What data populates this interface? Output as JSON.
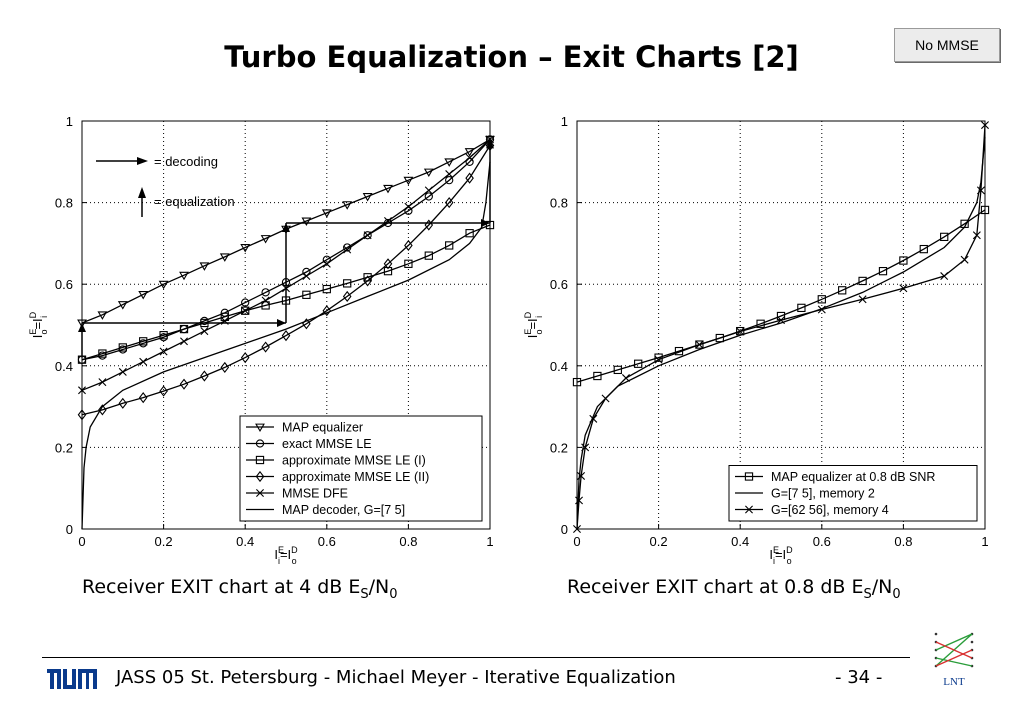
{
  "slide": {
    "title": "Turbo Equalization – Exit Charts [2]",
    "button_label": "No MMSE",
    "caption_left": {
      "prefix": "Receiver EXIT chart at 4 dB E",
      "sub1": "S",
      "mid": "/N",
      "sub2": "0"
    },
    "caption_right": {
      "prefix": "Receiver EXIT chart at 0.8 dB E",
      "sub1": "S",
      "mid": "/N",
      "sub2": "0"
    },
    "footer": "JASS 05 St. Petersburg  -  Michael Meyer  -  Iterative Equalization",
    "page": "- 34 -",
    "lnt_logo_text": "LNT"
  },
  "chart_data": [
    {
      "type": "line",
      "title": "",
      "xlabel": "I_i^E=I_o^D",
      "ylabel": "I_o^E=I_i^D",
      "xlim": [
        0,
        1
      ],
      "ylim": [
        0,
        1
      ],
      "xticks": [
        "0",
        "0.2",
        "0.4",
        "0.6",
        "0.8",
        "1"
      ],
      "yticks": [
        "0",
        "0.2",
        "0.4",
        "0.6",
        "0.8",
        "1"
      ],
      "grid": true,
      "legend_position": "bottom-right",
      "annotations": [
        "= decoding",
        "= equalization"
      ],
      "series": [
        {
          "name": "MAP equalizer",
          "marker": "triangle-down",
          "x": [
            0,
            0.05,
            0.1,
            0.15,
            0.2,
            0.25,
            0.3,
            0.35,
            0.4,
            0.45,
            0.5,
            0.55,
            0.6,
            0.65,
            0.7,
            0.75,
            0.8,
            0.85,
            0.9,
            0.95,
            1.0
          ],
          "y": [
            0.505,
            0.525,
            0.55,
            0.575,
            0.6,
            0.622,
            0.645,
            0.667,
            0.69,
            0.712,
            0.735,
            0.755,
            0.775,
            0.795,
            0.815,
            0.835,
            0.855,
            0.875,
            0.9,
            0.925,
            0.955
          ]
        },
        {
          "name": "exact MMSE LE",
          "marker": "circle",
          "x": [
            0,
            0.05,
            0.1,
            0.15,
            0.2,
            0.25,
            0.3,
            0.35,
            0.4,
            0.45,
            0.5,
            0.55,
            0.6,
            0.65,
            0.7,
            0.75,
            0.8,
            0.85,
            0.9,
            0.95,
            1.0
          ],
          "y": [
            0.415,
            0.425,
            0.44,
            0.455,
            0.47,
            0.49,
            0.51,
            0.53,
            0.555,
            0.58,
            0.605,
            0.63,
            0.66,
            0.69,
            0.72,
            0.75,
            0.78,
            0.815,
            0.855,
            0.9,
            0.955
          ]
        },
        {
          "name": "approximate MMSE LE (I)",
          "marker": "square",
          "x": [
            0,
            0.05,
            0.1,
            0.15,
            0.2,
            0.25,
            0.3,
            0.35,
            0.4,
            0.45,
            0.5,
            0.55,
            0.6,
            0.65,
            0.7,
            0.75,
            0.8,
            0.85,
            0.9,
            0.95,
            1.0
          ],
          "y": [
            0.415,
            0.43,
            0.445,
            0.46,
            0.475,
            0.49,
            0.505,
            0.52,
            0.535,
            0.548,
            0.56,
            0.574,
            0.588,
            0.602,
            0.617,
            0.632,
            0.65,
            0.67,
            0.695,
            0.725,
            0.745
          ]
        },
        {
          "name": "approximate MMSE LE (II)",
          "marker": "diamond",
          "x": [
            0,
            0.05,
            0.1,
            0.15,
            0.2,
            0.25,
            0.3,
            0.35,
            0.4,
            0.45,
            0.5,
            0.55,
            0.6,
            0.65,
            0.7,
            0.75,
            0.8,
            0.85,
            0.9,
            0.95,
            1.0
          ],
          "y": [
            0.28,
            0.292,
            0.308,
            0.322,
            0.338,
            0.355,
            0.375,
            0.396,
            0.42,
            0.446,
            0.474,
            0.503,
            0.535,
            0.57,
            0.608,
            0.65,
            0.695,
            0.745,
            0.8,
            0.86,
            0.94
          ]
        },
        {
          "name": "MMSE DFE",
          "marker": "x",
          "x": [
            0,
            0.05,
            0.1,
            0.15,
            0.2,
            0.25,
            0.3,
            0.35,
            0.4,
            0.45,
            0.5,
            0.55,
            0.6,
            0.65,
            0.7,
            0.75,
            0.8,
            0.85,
            0.9,
            0.95,
            1.0
          ],
          "y": [
            0.34,
            0.36,
            0.385,
            0.41,
            0.435,
            0.46,
            0.485,
            0.51,
            0.535,
            0.56,
            0.59,
            0.62,
            0.65,
            0.685,
            0.72,
            0.755,
            0.79,
            0.83,
            0.87,
            0.91,
            0.955
          ]
        },
        {
          "name": "MAP decoder, G=[7 5]",
          "marker": "none",
          "x": [
            0,
            0.005,
            0.01,
            0.02,
            0.05,
            0.1,
            0.2,
            0.3,
            0.4,
            0.5,
            0.6,
            0.7,
            0.8,
            0.9,
            0.95,
            0.98,
            0.99,
            1.0
          ],
          "y": [
            0.0,
            0.15,
            0.2,
            0.25,
            0.3,
            0.34,
            0.385,
            0.42,
            0.455,
            0.49,
            0.53,
            0.57,
            0.61,
            0.66,
            0.7,
            0.74,
            0.8,
            0.9
          ]
        }
      ],
      "decoding_trajectory": {
        "x": [
          0.0,
          0.0,
          0.5,
          0.5,
          1.0,
          1.0
        ],
        "y": [
          0.42,
          0.505,
          0.505,
          0.75,
          0.75,
          0.955
        ]
      }
    },
    {
      "type": "line",
      "title": "",
      "xlabel": "I_i^E=I_o^D",
      "ylabel": "I_o^E=I_i^D",
      "xlim": [
        0,
        1
      ],
      "ylim": [
        0,
        1
      ],
      "xticks": [
        "0",
        "0.2",
        "0.4",
        "0.6",
        "0.8",
        "1"
      ],
      "yticks": [
        "0",
        "0.2",
        "0.4",
        "0.6",
        "0.8",
        "1"
      ],
      "grid": true,
      "legend_position": "bottom-right",
      "series": [
        {
          "name": "MAP equalizer at 0.8 dB SNR",
          "marker": "square",
          "x": [
            0,
            0.05,
            0.1,
            0.15,
            0.2,
            0.25,
            0.3,
            0.35,
            0.4,
            0.45,
            0.5,
            0.55,
            0.6,
            0.65,
            0.7,
            0.75,
            0.8,
            0.85,
            0.9,
            0.95,
            1.0
          ],
          "y": [
            0.36,
            0.375,
            0.39,
            0.405,
            0.42,
            0.436,
            0.452,
            0.468,
            0.485,
            0.503,
            0.522,
            0.542,
            0.563,
            0.585,
            0.608,
            0.632,
            0.658,
            0.686,
            0.716,
            0.748,
            0.782
          ]
        },
        {
          "name": "G=[7 5], memory 2",
          "marker": "none",
          "x": [
            0,
            0.005,
            0.01,
            0.02,
            0.05,
            0.1,
            0.2,
            0.3,
            0.4,
            0.5,
            0.6,
            0.7,
            0.8,
            0.9,
            0.95,
            0.98,
            0.99,
            1.0
          ],
          "y": [
            0.0,
            0.12,
            0.17,
            0.23,
            0.3,
            0.35,
            0.4,
            0.44,
            0.475,
            0.505,
            0.54,
            0.58,
            0.63,
            0.69,
            0.74,
            0.8,
            0.85,
            0.96
          ]
        },
        {
          "name": "G=[62 56], memory 4",
          "marker": "x",
          "x": [
            0,
            0.005,
            0.01,
            0.02,
            0.04,
            0.07,
            0.12,
            0.2,
            0.3,
            0.4,
            0.5,
            0.6,
            0.7,
            0.8,
            0.9,
            0.95,
            0.98,
            0.99,
            1.0
          ],
          "y": [
            0.0,
            0.07,
            0.13,
            0.2,
            0.27,
            0.32,
            0.37,
            0.415,
            0.452,
            0.484,
            0.512,
            0.538,
            0.563,
            0.59,
            0.62,
            0.66,
            0.72,
            0.83,
            0.99
          ]
        }
      ]
    }
  ]
}
